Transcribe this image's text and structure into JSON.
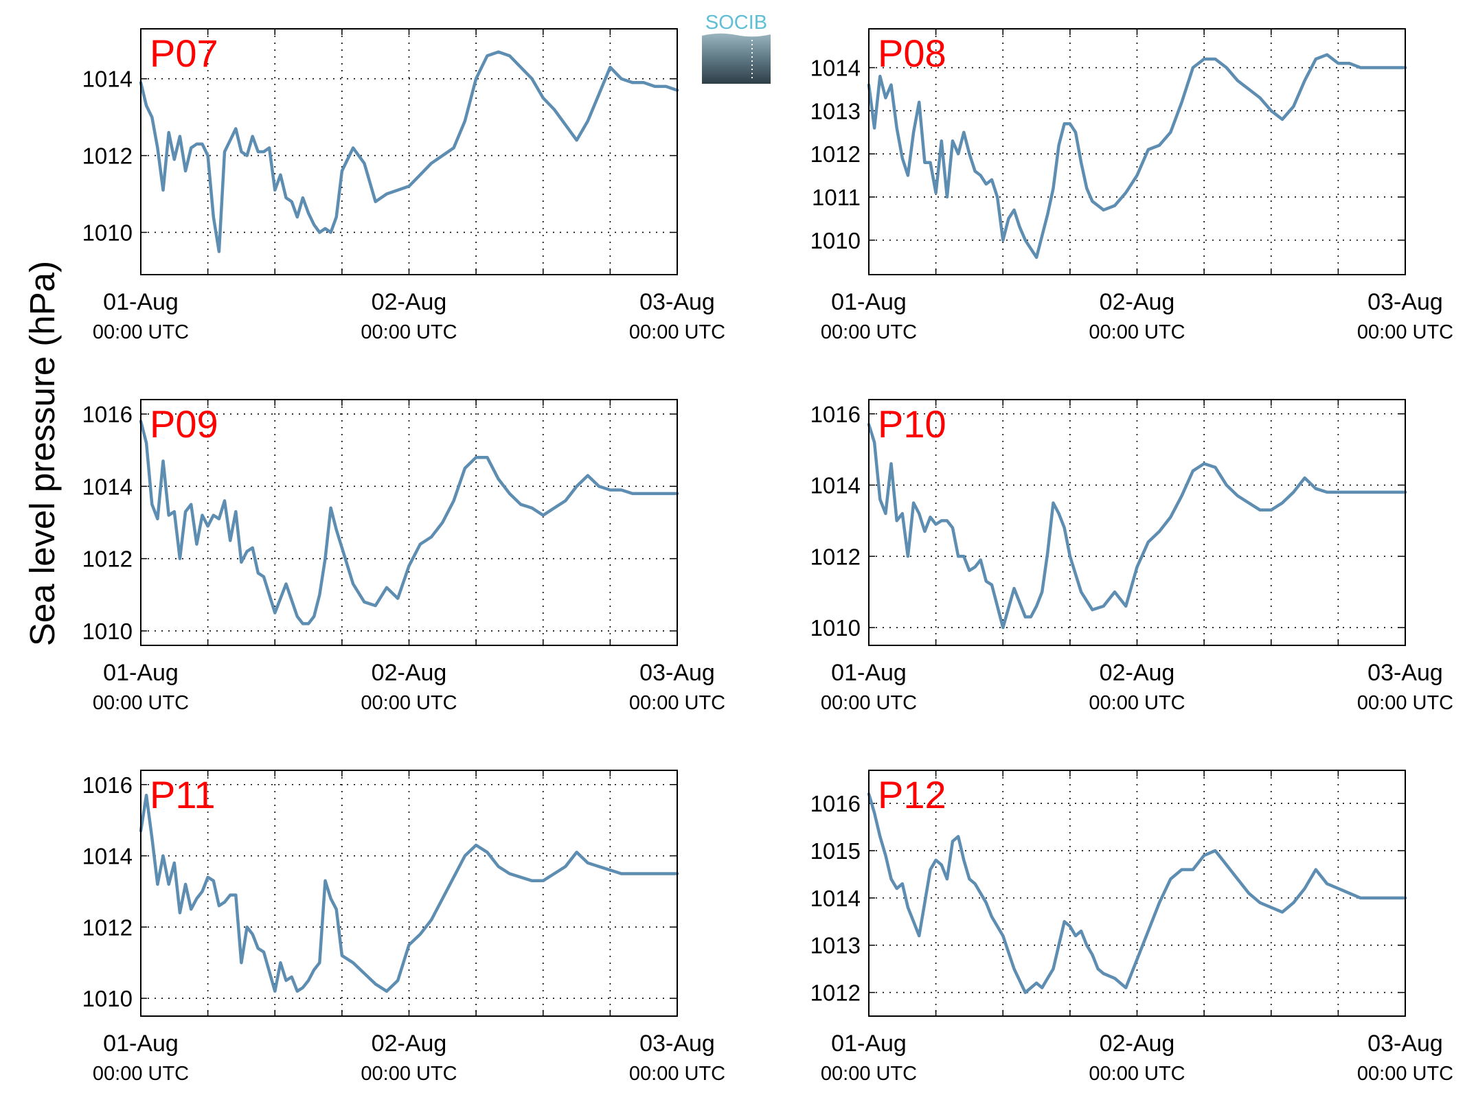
{
  "figure": {
    "ylabel": "Sea level pressure (hPa)",
    "logo_text": "SOCIB"
  },
  "chart_data": [
    {
      "type": "line",
      "title": "P07",
      "x_tick_labels": [
        [
          "01-Aug",
          "00:00 UTC"
        ],
        [
          "02-Aug",
          "00:00 UTC"
        ],
        [
          "03-Aug",
          "00:00 UTC"
        ]
      ],
      "xlim": [
        0,
        48
      ],
      "ylim": [
        1008.9,
        1015.3
      ],
      "yticks": [
        1010,
        1012,
        1014
      ],
      "grid": true,
      "line_color": "#5e8db2",
      "series": [
        {
          "x": [
            0,
            0.5,
            1,
            1.5,
            2,
            2.5,
            3,
            3.5,
            4,
            4.5,
            5,
            5.5,
            6,
            6.5,
            7,
            7.5,
            8,
            8.5,
            9,
            9.5,
            10,
            10.5,
            11,
            11.5,
            12,
            12.5,
            13,
            13.5,
            14,
            14.5,
            15,
            15.5,
            16,
            16.5,
            17,
            17.5,
            18,
            19,
            20,
            21,
            22,
            23,
            24,
            25,
            26,
            27,
            28,
            29,
            30,
            31,
            32,
            33,
            34,
            35,
            36,
            37,
            38,
            39,
            40,
            41,
            42,
            43,
            44,
            45,
            46,
            47,
            48
          ],
          "values": [
            1013.9,
            1013.3,
            1013.0,
            1012.2,
            1011.1,
            1012.6,
            1011.9,
            1012.5,
            1011.6,
            1012.2,
            1012.3,
            1012.3,
            1012.0,
            1010.4,
            1009.5,
            1012.1,
            1012.4,
            1012.7,
            1012.1,
            1012.0,
            1012.5,
            1012.1,
            1012.1,
            1012.2,
            1011.1,
            1011.5,
            1010.9,
            1010.8,
            1010.4,
            1010.9,
            1010.5,
            1010.2,
            1010.0,
            1010.1,
            1010.0,
            1010.4,
            1011.6,
            1012.2,
            1011.8,
            1010.8,
            1011.0,
            1011.1,
            1011.2,
            1011.5,
            1011.8,
            1012.0,
            1012.2,
            1012.9,
            1014.0,
            1014.6,
            1014.7,
            1014.6,
            1014.3,
            1014.0,
            1013.5,
            1013.2,
            1012.8,
            1012.4,
            1012.9,
            1013.6,
            1014.3,
            1014.0,
            1013.9,
            1013.9,
            1013.8,
            1013.8,
            1013.7
          ]
        }
      ]
    },
    {
      "type": "line",
      "title": "P08",
      "x_tick_labels": [
        [
          "01-Aug",
          "00:00 UTC"
        ],
        [
          "02-Aug",
          "00:00 UTC"
        ],
        [
          "03-Aug",
          "00:00 UTC"
        ]
      ],
      "xlim": [
        0,
        48
      ],
      "ylim": [
        1009.2,
        1014.9
      ],
      "yticks": [
        1010,
        1011,
        1012,
        1013,
        1014
      ],
      "grid": true,
      "line_color": "#5e8db2",
      "series": [
        {
          "x": [
            0,
            0.5,
            1,
            1.5,
            2,
            2.5,
            3,
            3.5,
            4,
            4.5,
            5,
            5.5,
            6,
            6.5,
            7,
            7.5,
            8,
            8.5,
            9,
            9.5,
            10,
            10.5,
            11,
            11.5,
            12,
            12.5,
            13,
            13.5,
            14,
            14.5,
            15,
            15.5,
            16,
            16.5,
            17,
            17.5,
            18,
            18.5,
            19,
            19.5,
            20,
            20.5,
            21,
            22,
            23,
            24,
            25,
            26,
            27,
            28,
            29,
            30,
            31,
            32,
            33,
            34,
            35,
            36,
            37,
            38,
            39,
            40,
            41,
            42,
            43,
            44,
            45,
            46,
            47,
            48
          ],
          "values": [
            1013.6,
            1012.6,
            1013.8,
            1013.3,
            1013.6,
            1012.6,
            1011.9,
            1011.5,
            1012.5,
            1013.2,
            1011.8,
            1011.8,
            1011.1,
            1012.3,
            1011.0,
            1012.3,
            1012.0,
            1012.5,
            1012.0,
            1011.6,
            1011.5,
            1011.3,
            1011.4,
            1011.0,
            1010.0,
            1010.5,
            1010.7,
            1010.3,
            1010.0,
            1009.8,
            1009.6,
            1010.1,
            1010.6,
            1011.2,
            1012.2,
            1012.7,
            1012.7,
            1012.5,
            1011.8,
            1011.2,
            1010.9,
            1010.8,
            1010.7,
            1010.8,
            1011.1,
            1011.5,
            1012.1,
            1012.2,
            1012.5,
            1013.2,
            1014.0,
            1014.2,
            1014.2,
            1014.0,
            1013.7,
            1013.5,
            1013.3,
            1013.0,
            1012.8,
            1013.1,
            1013.7,
            1014.2,
            1014.3,
            1014.1,
            1014.1,
            1014.0,
            1014.0,
            1014.0,
            1014.0,
            1014.0
          ]
        }
      ]
    },
    {
      "type": "line",
      "title": "P09",
      "x_tick_labels": [
        [
          "01-Aug",
          "00:00 UTC"
        ],
        [
          "02-Aug",
          "00:00 UTC"
        ],
        [
          "03-Aug",
          "00:00 UTC"
        ]
      ],
      "xlim": [
        0,
        48
      ],
      "ylim": [
        1009.6,
        1016.4
      ],
      "yticks": [
        1010,
        1012,
        1014,
        1016
      ],
      "grid": true,
      "line_color": "#5e8db2",
      "series": [
        {
          "x": [
            0,
            0.5,
            1,
            1.5,
            2,
            2.5,
            3,
            3.5,
            4,
            4.5,
            5,
            5.5,
            6,
            6.5,
            7,
            7.5,
            8,
            8.5,
            9,
            9.5,
            10,
            10.5,
            11,
            12,
            13,
            14,
            14.5,
            15,
            15.5,
            16,
            16.5,
            17,
            17.5,
            18,
            19,
            20,
            21,
            22,
            23,
            24,
            25,
            26,
            27,
            28,
            29,
            30,
            31,
            32,
            33,
            34,
            35,
            36,
            37,
            38,
            39,
            40,
            41,
            42,
            43,
            44,
            45,
            46,
            47,
            48
          ],
          "values": [
            1015.8,
            1015.2,
            1013.5,
            1013.1,
            1014.7,
            1013.2,
            1013.3,
            1012.0,
            1013.3,
            1013.5,
            1012.4,
            1013.2,
            1012.9,
            1013.2,
            1013.1,
            1013.6,
            1012.5,
            1013.3,
            1011.9,
            1012.2,
            1012.3,
            1011.6,
            1011.5,
            1010.5,
            1011.3,
            1010.4,
            1010.2,
            1010.2,
            1010.4,
            1011.0,
            1012.0,
            1013.4,
            1012.8,
            1012.3,
            1011.3,
            1010.8,
            1010.7,
            1011.2,
            1010.9,
            1011.8,
            1012.4,
            1012.6,
            1013.0,
            1013.6,
            1014.5,
            1014.8,
            1014.8,
            1014.2,
            1013.8,
            1013.5,
            1013.4,
            1013.2,
            1013.4,
            1013.6,
            1014.0,
            1014.3,
            1014.0,
            1013.9,
            1013.9,
            1013.8,
            1013.8,
            1013.8,
            1013.8,
            1013.8
          ]
        }
      ]
    },
    {
      "type": "line",
      "title": "P10",
      "x_tick_labels": [
        [
          "01-Aug",
          "00:00 UTC"
        ],
        [
          "02-Aug",
          "00:00 UTC"
        ],
        [
          "03-Aug",
          "00:00 UTC"
        ]
      ],
      "xlim": [
        0,
        48
      ],
      "ylim": [
        1009.5,
        1016.4
      ],
      "yticks": [
        1010,
        1012,
        1014,
        1016
      ],
      "grid": true,
      "line_color": "#5e8db2",
      "series": [
        {
          "x": [
            0,
            0.5,
            1,
            1.5,
            2,
            2.5,
            3,
            3.5,
            4,
            4.5,
            5,
            5.5,
            6,
            6.5,
            7,
            7.5,
            8,
            8.5,
            9,
            9.5,
            10,
            10.5,
            11,
            12,
            13,
            14,
            14.5,
            15,
            15.5,
            16,
            16.5,
            17,
            17.5,
            18,
            19,
            20,
            21,
            22,
            23,
            24,
            25,
            26,
            27,
            28,
            29,
            30,
            31,
            32,
            33,
            34,
            35,
            36,
            37,
            38,
            39,
            40,
            41,
            42,
            43,
            44,
            45,
            46,
            47,
            48
          ],
          "values": [
            1015.7,
            1015.2,
            1013.6,
            1013.2,
            1014.6,
            1013.0,
            1013.2,
            1012.0,
            1013.5,
            1013.2,
            1012.7,
            1013.1,
            1012.9,
            1013.0,
            1013.0,
            1012.8,
            1012.0,
            1012.0,
            1011.6,
            1011.7,
            1011.9,
            1011.3,
            1011.2,
            1010.0,
            1011.1,
            1010.3,
            1010.3,
            1010.6,
            1011.0,
            1012.1,
            1013.5,
            1013.2,
            1012.8,
            1012.0,
            1011.0,
            1010.5,
            1010.6,
            1011.0,
            1010.6,
            1011.7,
            1012.4,
            1012.7,
            1013.1,
            1013.7,
            1014.4,
            1014.6,
            1014.5,
            1014.0,
            1013.7,
            1013.5,
            1013.3,
            1013.3,
            1013.5,
            1013.8,
            1014.2,
            1013.9,
            1013.8,
            1013.8,
            1013.8,
            1013.8,
            1013.8,
            1013.8,
            1013.8,
            1013.8
          ]
        }
      ]
    },
    {
      "type": "line",
      "title": "P11",
      "x_tick_labels": [
        [
          "01-Aug",
          "00:00 UTC"
        ],
        [
          "02-Aug",
          "00:00 UTC"
        ],
        [
          "03-Aug",
          "00:00 UTC"
        ]
      ],
      "xlim": [
        0,
        48
      ],
      "ylim": [
        1009.5,
        1016.4
      ],
      "yticks": [
        1010,
        1012,
        1014,
        1016
      ],
      "grid": true,
      "line_color": "#5e8db2",
      "series": [
        {
          "x": [
            0,
            0.5,
            1,
            1.5,
            2,
            2.5,
            3,
            3.5,
            4,
            4.5,
            5,
            5.5,
            6,
            6.5,
            7,
            7.5,
            8,
            8.5,
            9,
            9.5,
            10,
            10.5,
            11,
            12,
            12.5,
            13,
            13.5,
            14,
            14.5,
            15,
            15.5,
            16,
            16.5,
            17,
            17.5,
            18,
            19,
            20,
            21,
            22,
            23,
            24,
            25,
            26,
            27,
            28,
            29,
            30,
            31,
            32,
            33,
            34,
            35,
            36,
            37,
            38,
            39,
            40,
            41,
            42,
            43,
            44,
            45,
            46,
            47,
            48
          ],
          "values": [
            1014.7,
            1015.7,
            1014.5,
            1013.2,
            1014.0,
            1013.2,
            1013.8,
            1012.4,
            1013.2,
            1012.5,
            1012.8,
            1013.0,
            1013.4,
            1013.3,
            1012.6,
            1012.7,
            1012.9,
            1012.9,
            1011.0,
            1012.0,
            1011.8,
            1011.4,
            1011.3,
            1010.2,
            1011.0,
            1010.5,
            1010.6,
            1010.2,
            1010.3,
            1010.5,
            1010.8,
            1011.0,
            1013.3,
            1012.8,
            1012.5,
            1011.2,
            1011.0,
            1010.7,
            1010.4,
            1010.2,
            1010.5,
            1011.5,
            1011.8,
            1012.2,
            1012.8,
            1013.4,
            1014.0,
            1014.3,
            1014.1,
            1013.7,
            1013.5,
            1013.4,
            1013.3,
            1013.3,
            1013.5,
            1013.7,
            1014.1,
            1013.8,
            1013.7,
            1013.6,
            1013.5,
            1013.5,
            1013.5,
            1013.5,
            1013.5,
            1013.5
          ]
        }
      ]
    },
    {
      "type": "line",
      "title": "P12",
      "x_tick_labels": [
        [
          "01-Aug",
          "00:00 UTC"
        ],
        [
          "02-Aug",
          "00:00 UTC"
        ],
        [
          "03-Aug",
          "00:00 UTC"
        ]
      ],
      "xlim": [
        0,
        48
      ],
      "ylim": [
        1011.5,
        1016.7
      ],
      "yticks": [
        1012,
        1013,
        1014,
        1015,
        1016
      ],
      "grid": true,
      "line_color": "#5e8db2",
      "series": [
        {
          "x": [
            0,
            0.5,
            1,
            1.5,
            2,
            2.5,
            3,
            3.5,
            4,
            4.5,
            5,
            5.5,
            6,
            6.5,
            7,
            7.5,
            8,
            8.5,
            9,
            9.5,
            10,
            10.5,
            11,
            12,
            13,
            14,
            15,
            15.5,
            16,
            16.5,
            17,
            17.5,
            18,
            18.5,
            19,
            19.5,
            20,
            20.5,
            21,
            22,
            23,
            24,
            25,
            26,
            27,
            28,
            29,
            30,
            31,
            32,
            33,
            34,
            35,
            36,
            37,
            38,
            39,
            40,
            41,
            42,
            43,
            44,
            45,
            46,
            47,
            48
          ],
          "values": [
            1016.2,
            1015.8,
            1015.3,
            1014.9,
            1014.4,
            1014.2,
            1014.3,
            1013.8,
            1013.5,
            1013.2,
            1013.9,
            1014.6,
            1014.8,
            1014.7,
            1014.4,
            1015.2,
            1015.3,
            1014.8,
            1014.4,
            1014.3,
            1014.1,
            1013.9,
            1013.6,
            1013.2,
            1012.5,
            1012.0,
            1012.2,
            1012.1,
            1012.3,
            1012.5,
            1013.0,
            1013.5,
            1013.4,
            1013.2,
            1013.3,
            1013.0,
            1012.8,
            1012.5,
            1012.4,
            1012.3,
            1012.1,
            1012.7,
            1013.3,
            1013.9,
            1014.4,
            1014.6,
            1014.6,
            1014.9,
            1015.0,
            1014.7,
            1014.4,
            1014.1,
            1013.9,
            1013.8,
            1013.7,
            1013.9,
            1014.2,
            1014.6,
            1014.3,
            1014.2,
            1014.1,
            1014.0,
            1014.0,
            1014.0,
            1014.0,
            1014.0
          ]
        }
      ]
    }
  ]
}
